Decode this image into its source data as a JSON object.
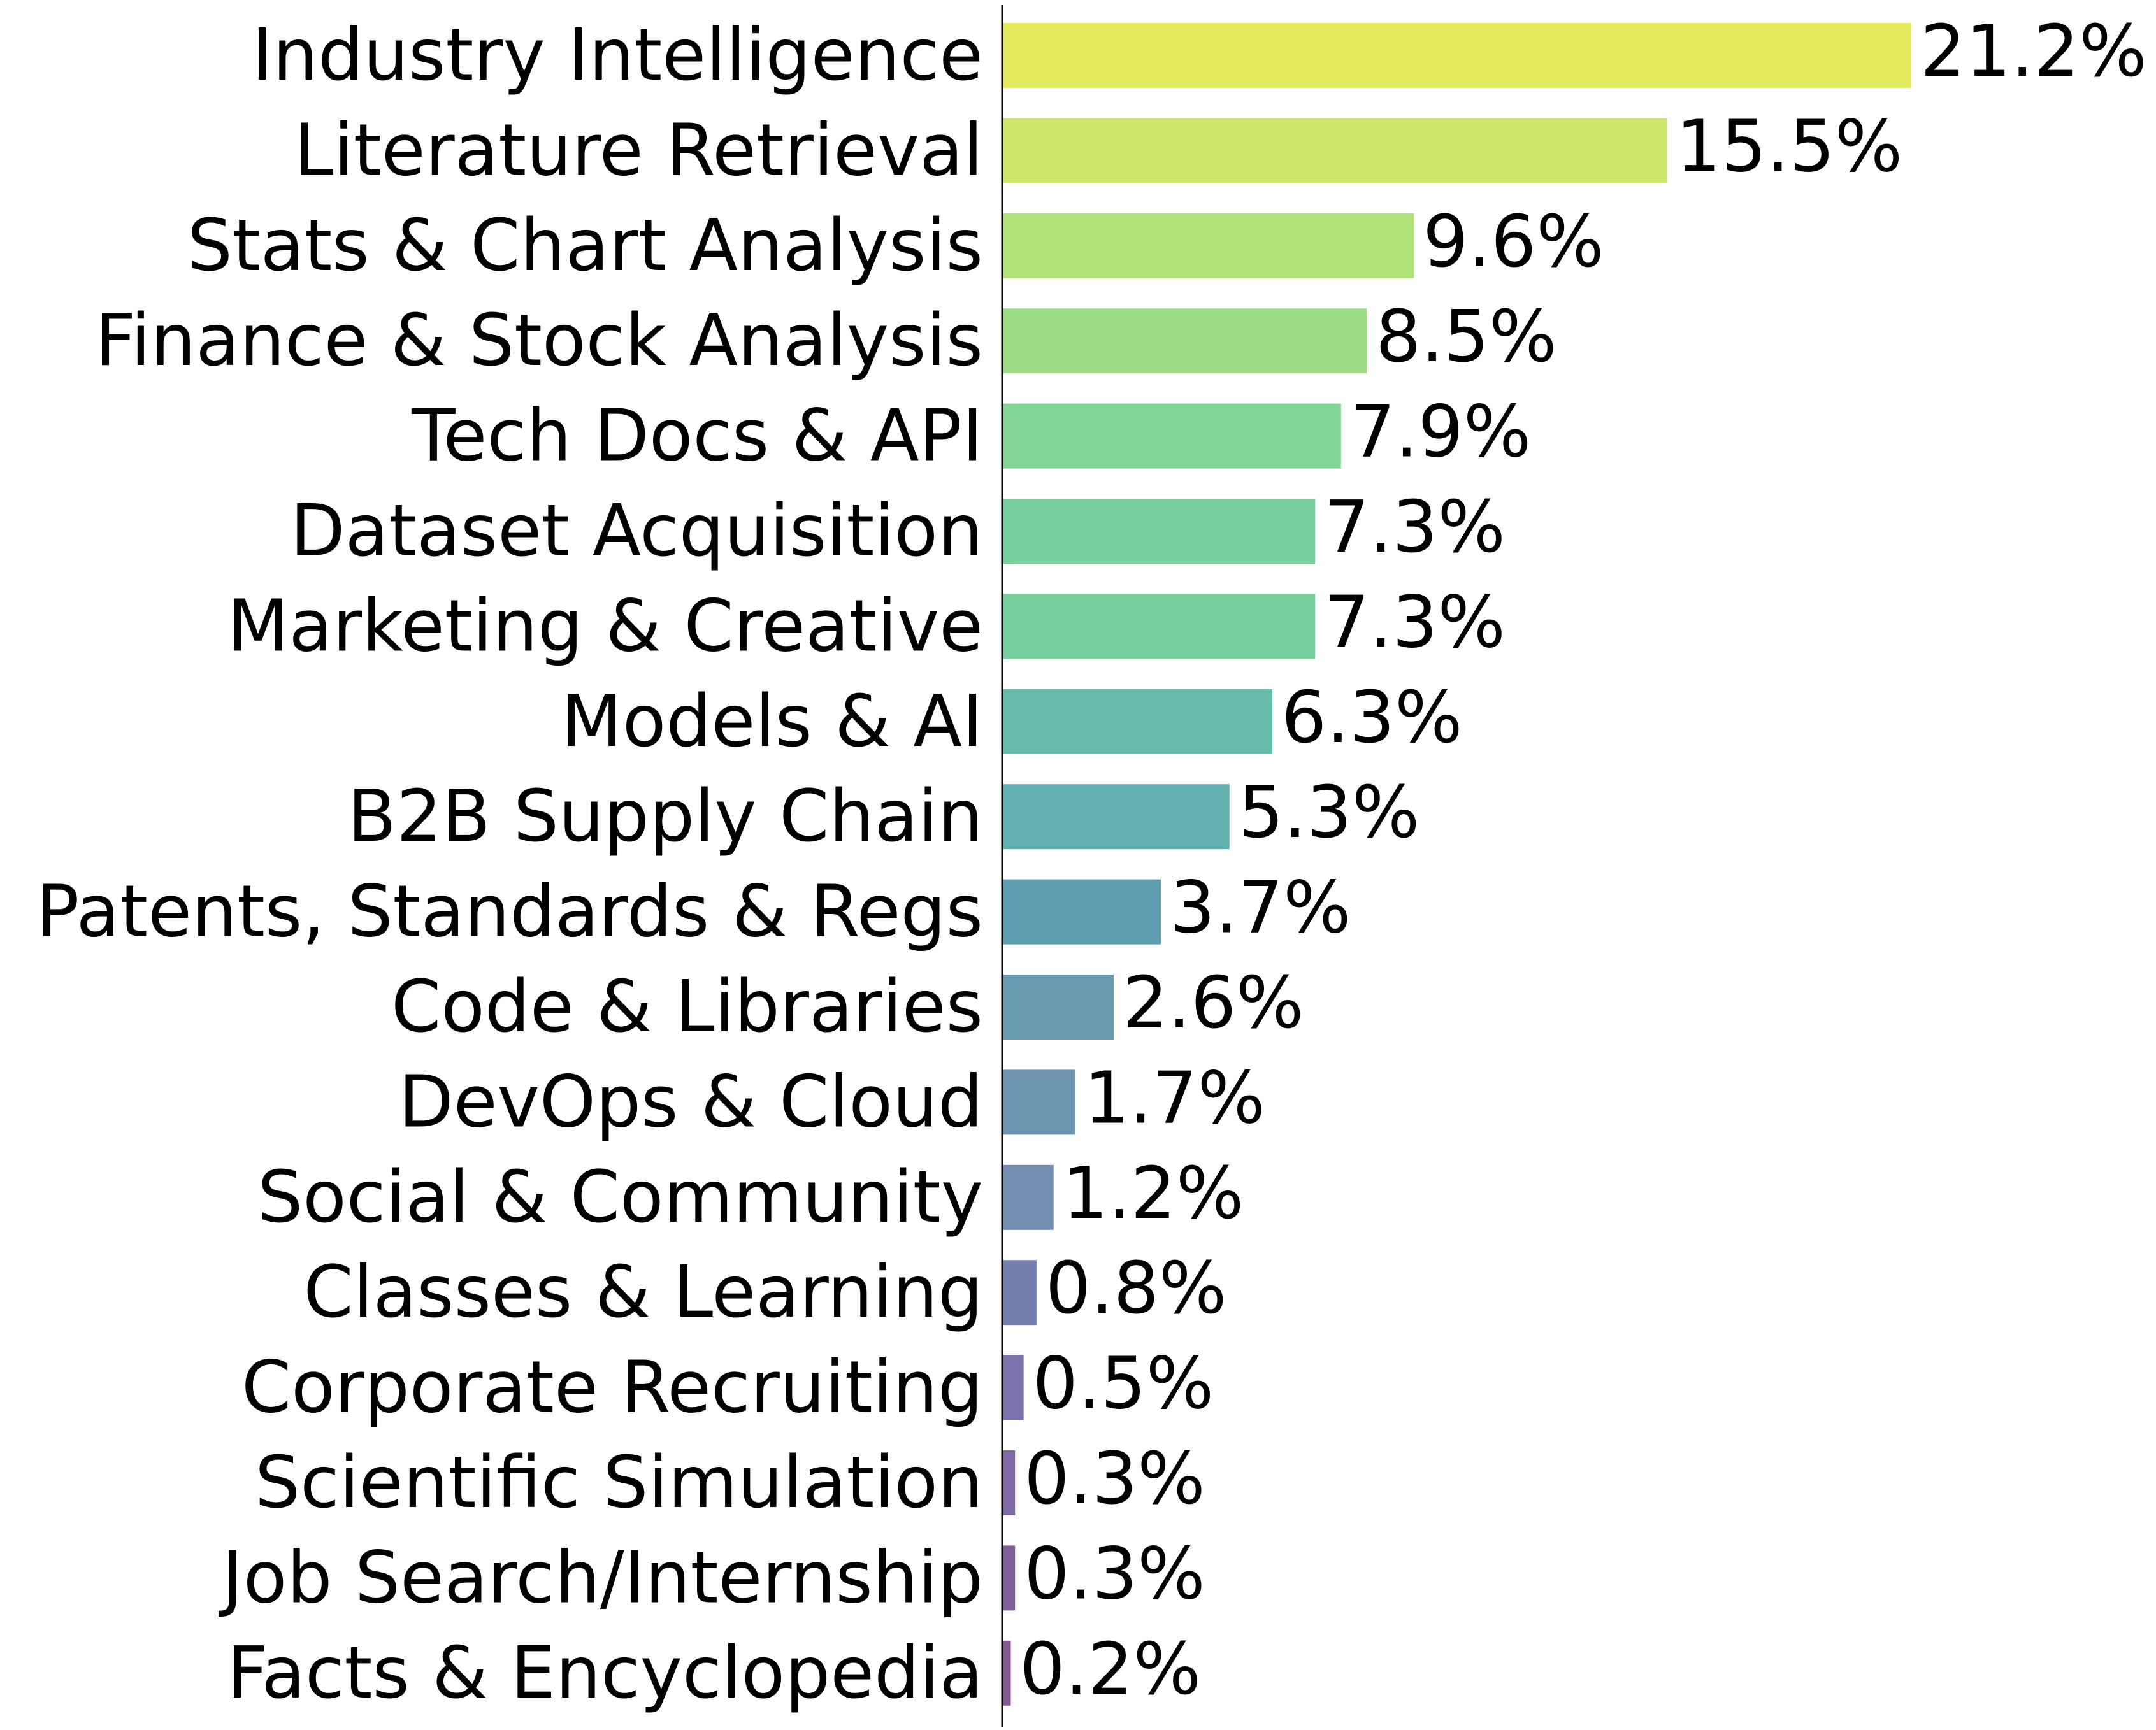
{
  "chart_data": {
    "type": "bar",
    "orientation": "horizontal",
    "categories": [
      "Industry Intelligence",
      "Literature Retrieval",
      "Stats & Chart Analysis",
      "Finance & Stock Analysis",
      "Tech Docs & API",
      "Dataset Acquisition",
      "Marketing & Creative",
      "Models & AI",
      "B2B Supply Chain",
      "Patents, Standards & Regs",
      "Code & Libraries",
      "DevOps & Cloud",
      "Social & Community",
      "Classes & Learning",
      "Corporate Recruiting",
      "Scientific Simulation",
      "Job Search/Internship",
      "Facts & Encyclopedia"
    ],
    "values": [
      21.2,
      15.5,
      9.6,
      8.5,
      7.9,
      7.3,
      7.3,
      6.3,
      5.3,
      3.7,
      2.6,
      1.7,
      1.2,
      0.8,
      0.5,
      0.3,
      0.3,
      0.2
    ],
    "value_labels": [
      "21.2%",
      "15.5%",
      "9.6%",
      "8.5%",
      "7.9%",
      "7.3%",
      "7.3%",
      "6.3%",
      "5.3%",
      "3.7%",
      "2.6%",
      "1.7%",
      "1.2%",
      "0.8%",
      "0.5%",
      "0.3%",
      "0.3%",
      "0.2%"
    ],
    "colors": [
      "#e4e95d",
      "#cde76a",
      "#b2e27a",
      "#9ddd86",
      "#84d593",
      "#76cf9c",
      "#76cf9c",
      "#66bbab",
      "#63b0b0",
      "#5f9eb1",
      "#6a9bb0",
      "#6d94b0",
      "#738eb2",
      "#7380ad",
      "#7b71ab",
      "#806aa5",
      "#7d5f98",
      "#855892"
    ],
    "title": "",
    "xlabel": "",
    "ylabel": "",
    "xlim": [
      0,
      21.2
    ],
    "grid": false,
    "legend": "none"
  }
}
